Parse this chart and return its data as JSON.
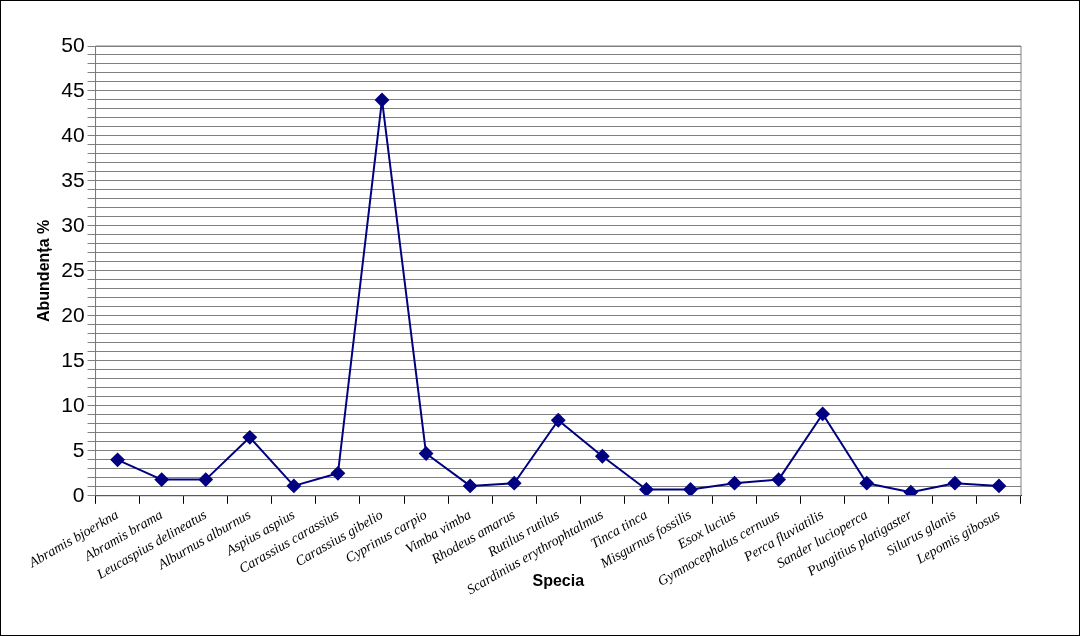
{
  "chart_data": {
    "type": "line",
    "xlabel": "Specia",
    "ylabel": "Abundența %",
    "categories": [
      "Abramis bjoerkna",
      "Abramis brama",
      "Leucaspius delineatus",
      "Alburnus alburnus",
      "Aspius aspius",
      "Carassius carassius",
      "Carassius gibelio",
      "Cyprinus carpio",
      "Vimba vimba",
      "Rhodeus amarus",
      "Rutilus rutilus",
      "Scardinius erythrophtalmus",
      "Tinca tinca",
      "Misgurnus fossilis",
      "Esox lucius",
      "Gymnocephalus cernuus",
      "Perca fluviatilis",
      "Sander lucioperca",
      "Pungitius platigaster",
      "Silurus glanis",
      "Lepomis gibosus"
    ],
    "series": [
      {
        "color": "#000080",
        "values": [
          4.0,
          1.8,
          1.8,
          6.5,
          1.1,
          2.5,
          44,
          4.7,
          1.1,
          1.4,
          8.4,
          4.4,
          0.7,
          0.7,
          1.4,
          1.8,
          9.1,
          1.4,
          0.4,
          1.4,
          1.1
        ]
      }
    ],
    "ylim": [
      0,
      50
    ],
    "yticks": [
      0,
      {
        "value": 1,
        "label": null
      },
      {
        "value": 2,
        "label": null
      },
      {
        "value": 3,
        "label": null
      },
      {
        "value": 4,
        "label": null
      },
      5,
      {
        "value": 6,
        "label": null
      },
      {
        "value": 7,
        "label": null
      },
      {
        "value": 8,
        "label": null
      },
      {
        "value": 9,
        "label": null
      },
      10,
      {
        "value": 11,
        "label": null
      },
      {
        "value": 12,
        "label": null
      },
      {
        "value": 13,
        "label": null
      },
      {
        "value": 14,
        "label": null
      },
      15,
      {
        "value": 16,
        "label": null
      },
      {
        "value": 17,
        "label": null
      },
      {
        "value": 18,
        "label": null
      },
      {
        "value": 19,
        "label": null
      },
      20,
      {
        "value": 21,
        "label": null
      },
      {
        "value": 22,
        "label": null
      },
      {
        "value": 23,
        "label": null
      },
      {
        "value": 24,
        "label": null
      },
      25,
      {
        "value": 26,
        "label": null
      },
      {
        "value": 27,
        "label": null
      },
      {
        "value": 28,
        "label": null
      },
      {
        "value": 29,
        "label": null
      },
      30,
      {
        "value": 31,
        "label": null
      },
      {
        "value": 32,
        "label": null
      },
      {
        "value": 33,
        "label": null
      },
      {
        "value": 34,
        "label": null
      },
      35,
      {
        "value": 36,
        "label": null
      },
      {
        "value": 37,
        "label": null
      },
      {
        "value": 38,
        "label": null
      },
      {
        "value": 39,
        "label": null
      },
      40,
      {
        "value": 41,
        "label": null
      },
      {
        "value": 42,
        "label": null
      },
      {
        "value": 43,
        "label": null
      },
      {
        "value": 44,
        "label": null
      },
      45,
      {
        "value": 46,
        "label": null
      },
      {
        "value": 47,
        "label": null
      },
      {
        "value": 48,
        "label": null
      },
      {
        "value": 49,
        "label": null
      },
      50
    ],
    "grid": "y",
    "legend": false,
    "marker": "diamond",
    "line_style": "solid"
  }
}
